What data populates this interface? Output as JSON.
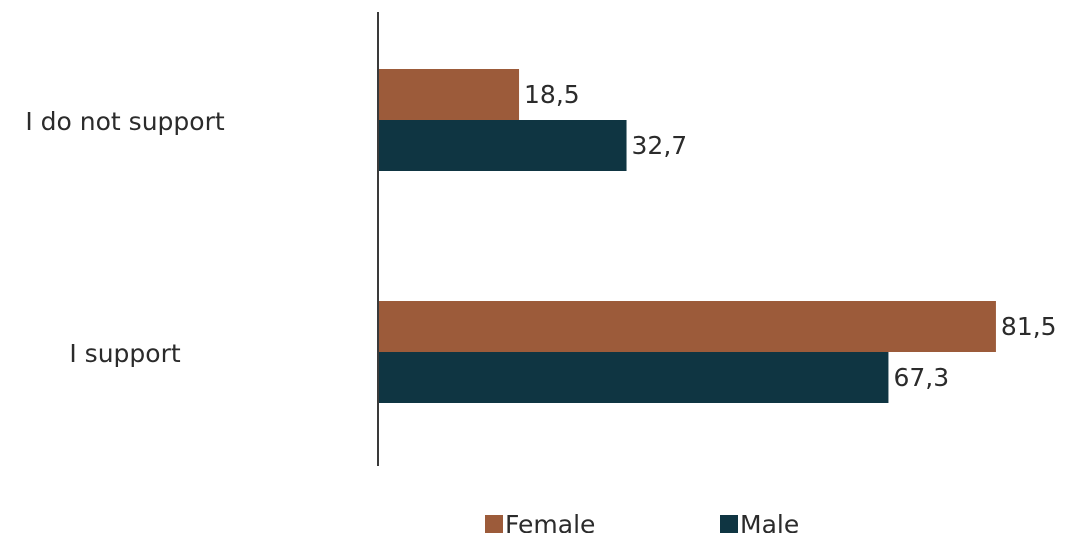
{
  "chart_data": {
    "type": "bar",
    "orientation": "horizontal",
    "categories": [
      "I do not support",
      "I support"
    ],
    "series": [
      {
        "name": "Female",
        "values": [
          18.5,
          81.5
        ],
        "labels": [
          "18,5",
          "81,5"
        ],
        "color": "#9c5b3a"
      },
      {
        "name": "Male",
        "values": [
          32.7,
          67.3
        ],
        "labels": [
          "32,7",
          "67,3"
        ],
        "color": "#0f3542"
      }
    ],
    "title": "",
    "xlabel": "",
    "ylabel": "",
    "xlim": [
      0,
      86
    ],
    "grid": false,
    "legend": "bottom-center"
  }
}
